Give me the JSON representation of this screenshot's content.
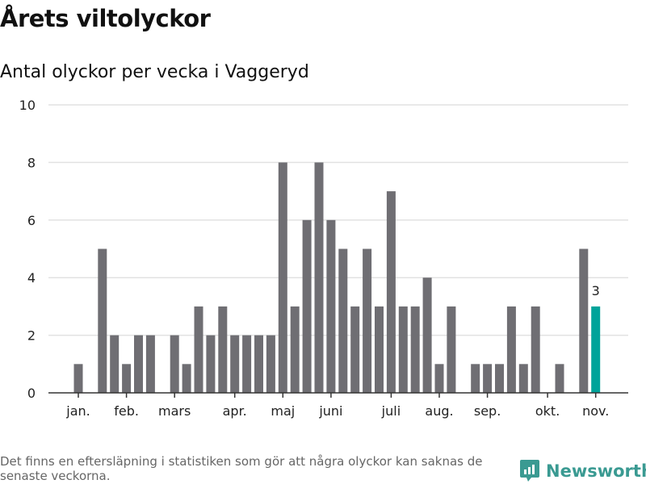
{
  "title": "Årets viltolyckor",
  "subtitle": "Antal olyckor per vecka i Vaggeryd",
  "footnote": "Det finns en eftersläpning i statistiken som gör att några olyckor kan saknas de senaste veckorna.",
  "brand": "Newsworthy",
  "colors": {
    "bar": "#6f6e73",
    "highlight": "#00a39a",
    "grid": "#e2e2e2",
    "axis": "#333333",
    "brand": "#3a9a92"
  },
  "chart_data": {
    "type": "bar",
    "title": "Antal olyckor per vecka i Vaggeryd",
    "xlabel": "",
    "ylabel": "",
    "ylim": [
      0,
      10
    ],
    "yticks": [
      0,
      2,
      4,
      6,
      8,
      10
    ],
    "grid": true,
    "x": [
      1,
      2,
      3,
      4,
      5,
      6,
      7,
      8,
      9,
      10,
      11,
      12,
      13,
      14,
      15,
      16,
      17,
      18,
      19,
      20,
      21,
      22,
      23,
      24,
      25,
      26,
      27,
      28,
      29,
      30,
      31,
      32,
      33,
      34,
      35,
      36,
      37,
      38,
      39,
      40,
      41,
      42,
      43,
      44
    ],
    "values": [
      1,
      0,
      5,
      2,
      1,
      2,
      2,
      0,
      2,
      1,
      3,
      2,
      3,
      2,
      2,
      2,
      2,
      8,
      3,
      6,
      8,
      6,
      5,
      3,
      5,
      3,
      7,
      3,
      3,
      4,
      1,
      3,
      0,
      1,
      1,
      1,
      3,
      1,
      3,
      0,
      1,
      0,
      5,
      3
    ],
    "highlight_index": 43,
    "data_labels": [
      {
        "x": 44,
        "label": "3"
      }
    ],
    "xticks": [
      {
        "x": 1,
        "label": "jan."
      },
      {
        "x": 5,
        "label": "feb."
      },
      {
        "x": 9,
        "label": "mars"
      },
      {
        "x": 14,
        "label": "apr."
      },
      {
        "x": 18,
        "label": "maj"
      },
      {
        "x": 22,
        "label": "juni"
      },
      {
        "x": 27,
        "label": "juli"
      },
      {
        "x": 31,
        "label": "aug."
      },
      {
        "x": 35,
        "label": "sep."
      },
      {
        "x": 40,
        "label": "okt."
      },
      {
        "x": 44,
        "label": "nov."
      }
    ]
  }
}
